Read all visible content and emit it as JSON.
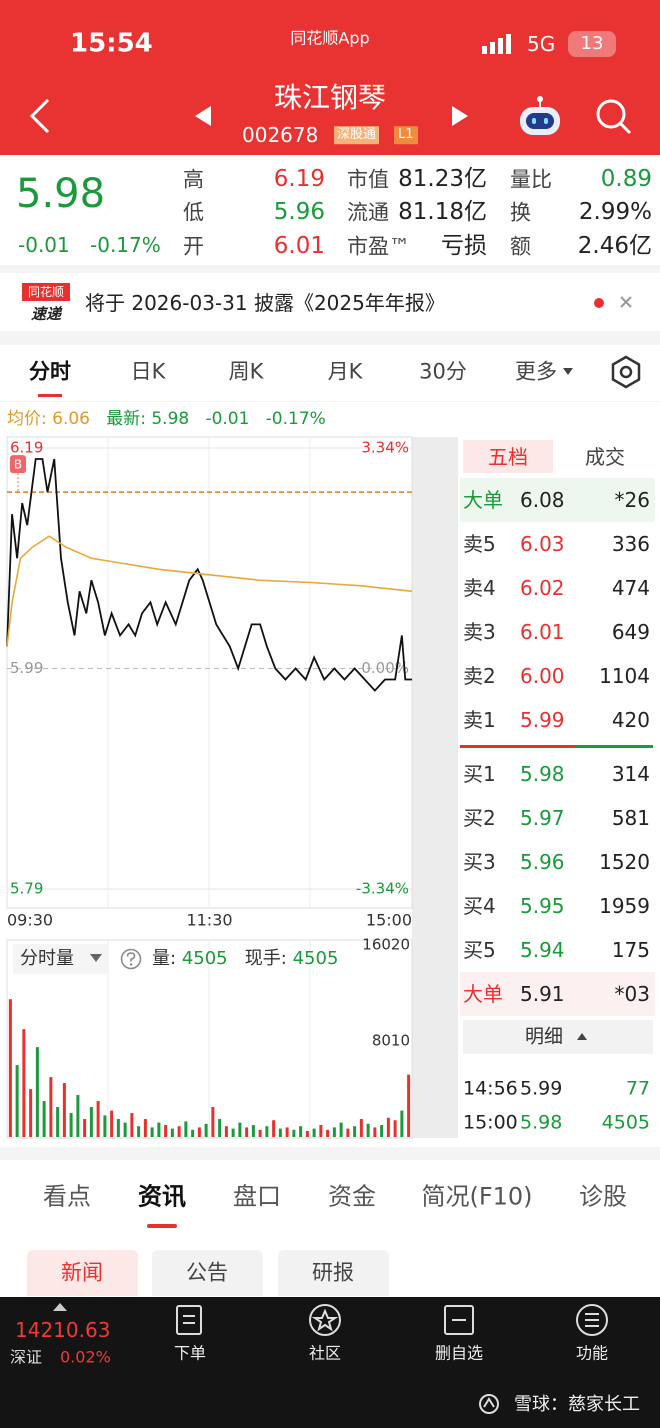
{
  "status_bar": {
    "time": "15:54",
    "app": "同花顺App",
    "network": "5G",
    "battery": "13"
  },
  "header": {
    "name": "珠江钢琴",
    "code": "002678",
    "tags": [
      "深股通",
      "L1"
    ]
  },
  "quote": {
    "price": "5.98",
    "change": "-0.01",
    "change_pct": "-0.17%",
    "stats": [
      [
        {
          "label": "高",
          "value": "6.19",
          "color": "#e8302f"
        },
        {
          "label": "市值",
          "value": "81.23亿",
          "color": "#222222"
        },
        {
          "label": "量比",
          "value": "0.89",
          "color": "#1a9a3a"
        }
      ],
      [
        {
          "label": "低",
          "value": "5.96",
          "color": "#1a9a3a"
        },
        {
          "label": "流通",
          "value": "81.18亿",
          "color": "#222222"
        },
        {
          "label": "换",
          "value": "2.99%",
          "color": "#222222"
        }
      ],
      [
        {
          "label": "开",
          "value": "6.01",
          "color": "#e8302f"
        },
        {
          "label": "市盈™",
          "value": "亏损",
          "color": "#222222"
        },
        {
          "label": "额",
          "value": "2.46亿",
          "color": "#222222"
        }
      ]
    ]
  },
  "notice": {
    "logo": [
      "同花顺",
      "速递"
    ],
    "text": "将于 2026-03-31 披露《2025年年报》"
  },
  "chart_tabs": [
    "分时",
    "日K",
    "周K",
    "月K",
    "30分",
    "更多"
  ],
  "info_line": {
    "avg_label": "均价:",
    "avg": "6.06",
    "last_label": "最新:",
    "last": "5.98",
    "change": "-0.01",
    "change_pct": "-0.17%"
  },
  "chart_data": [
    {
      "type": "line",
      "xlim": [
        0,
        240
      ],
      "xticks": [
        {
          "value": 0,
          "label": "09:30"
        },
        {
          "value": 120,
          "label": "11:30"
        },
        {
          "value": 240,
          "label": "15:00"
        }
      ],
      "ylim": [
        5.79,
        6.19
      ],
      "yticks": [
        5.79,
        5.99,
        6.19
      ],
      "y2lim": [
        -3.34,
        3.34
      ],
      "y2ticks": [
        {
          "value": -3.34,
          "label": "-3.34%"
        },
        {
          "value": 0,
          "label": "0.00%"
        },
        {
          "value": 3.34,
          "label": "3.34%"
        }
      ],
      "reference": {
        "label": "B",
        "value": 6.15,
        "color": "#e07b20"
      },
      "series": [
        {
          "color": "#111111",
          "x": [
            0,
            3,
            6,
            9,
            12,
            17,
            21,
            24,
            28,
            32,
            36,
            40,
            43,
            47,
            50,
            54,
            58,
            62,
            67,
            72,
            76,
            80,
            85,
            89,
            94,
            100,
            104,
            108,
            113,
            116,
            120,
            124,
            128,
            132,
            137,
            141,
            145,
            150,
            154,
            159,
            165,
            171,
            177,
            182,
            188,
            194,
            200,
            206,
            212,
            218,
            224,
            230,
            234,
            236,
            240
          ],
          "values": [
            6.01,
            6.13,
            6.09,
            6.14,
            6.12,
            6.18,
            6.18,
            6.15,
            6.18,
            6.09,
            6.05,
            6.02,
            6.06,
            6.04,
            6.07,
            6.05,
            6.02,
            6.04,
            6.02,
            6.03,
            6.02,
            6.04,
            6.05,
            6.03,
            6.05,
            6.03,
            6.05,
            6.07,
            6.08,
            6.07,
            6.05,
            6.03,
            6.02,
            6.01,
            5.99,
            6.01,
            6.03,
            6.03,
            6.01,
            5.99,
            5.98,
            5.99,
            5.98,
            6.0,
            5.98,
            5.99,
            5.98,
            5.99,
            5.98,
            5.97,
            5.98,
            5.98,
            6.02,
            5.98,
            5.98
          ]
        },
        {
          "color": "#e8a83a",
          "x": [
            0,
            3,
            8,
            15,
            25,
            35,
            50,
            70,
            90,
            120,
            150,
            180,
            210,
            240
          ],
          "values": [
            6.01,
            6.05,
            6.09,
            6.1,
            6.11,
            6.1,
            6.09,
            6.085,
            6.08,
            6.075,
            6.07,
            6.068,
            6.065,
            6.06
          ]
        }
      ]
    },
    {
      "type": "bar",
      "xlim": [
        0,
        240
      ],
      "ylim": [
        0,
        16020
      ],
      "yticks": [
        8010,
        16020
      ],
      "x": [
        2,
        6,
        10,
        14,
        18,
        22,
        26,
        30,
        34,
        38,
        42,
        46,
        50,
        54,
        58,
        62,
        66,
        70,
        74,
        78,
        82,
        86,
        90,
        94,
        98,
        102,
        106,
        110,
        114,
        118,
        122,
        126,
        130,
        134,
        138,
        142,
        146,
        150,
        154,
        158,
        162,
        166,
        170,
        174,
        178,
        182,
        186,
        190,
        194,
        198,
        202,
        206,
        210,
        214,
        218,
        222,
        226,
        230,
        234,
        238
      ],
      "values": [
        11500,
        6000,
        9000,
        4000,
        7500,
        3000,
        5000,
        2500,
        4500,
        2000,
        3500,
        1500,
        2500,
        3000,
        1800,
        2200,
        1500,
        1200,
        2000,
        900,
        1500,
        800,
        1200,
        1000,
        700,
        900,
        1300,
        600,
        800,
        1100,
        2500,
        1500,
        900,
        700,
        1200,
        800,
        1000,
        600,
        900,
        1400,
        700,
        800,
        600,
        900,
        500,
        700,
        1000,
        600,
        800,
        1200,
        700,
        900,
        1500,
        1100,
        800,
        1000,
        1600,
        1400,
        2200,
        5200
      ],
      "colors": [
        "#e8302f",
        "#1a9a3a",
        "#e8302f",
        "#e8302f",
        "#1a9a3a",
        "#1a9a3a",
        "#e8302f",
        "#1a9a3a",
        "#e8302f",
        "#1a9a3a",
        "#1a9a3a",
        "#e8302f",
        "#1a9a3a",
        "#e8302f",
        "#1a9a3a",
        "#e8302f",
        "#1a9a3a",
        "#1a9a3a",
        "#e8302f",
        "#1a9a3a",
        "#e8302f",
        "#1a9a3a",
        "#1a9a3a",
        "#e8302f",
        "#1a9a3a",
        "#e8302f",
        "#1a9a3a",
        "#1a9a3a",
        "#e8302f",
        "#1a9a3a",
        "#e8302f",
        "#1a9a3a",
        "#e8302f",
        "#1a9a3a",
        "#1a9a3a",
        "#e8302f",
        "#1a9a3a",
        "#e8302f",
        "#1a9a3a",
        "#e8302f",
        "#1a9a3a",
        "#e8302f",
        "#1a9a3a",
        "#1a9a3a",
        "#e8302f",
        "#1a9a3a",
        "#e8302f",
        "#e8302f",
        "#1a9a3a",
        "#1a9a3a",
        "#e8302f",
        "#1a9a3a",
        "#e8302f",
        "#1a9a3a",
        "#e8302f",
        "#1a9a3a",
        "#e8302f",
        "#e8302f",
        "#1a9a3a",
        "#e8302f"
      ]
    }
  ],
  "volume_info": {
    "selector": "分时量",
    "volume_label": "量:",
    "volume": "4505",
    "hand_label": "现手:",
    "hand": "4505"
  },
  "order_book": {
    "tabs": [
      "五档",
      "成交"
    ],
    "big_sell": {
      "label": "大单",
      "price": "6.08",
      "volume": "*26"
    },
    "asks": [
      {
        "label": "卖5",
        "price": "6.03",
        "volume": "336"
      },
      {
        "label": "卖4",
        "price": "6.02",
        "volume": "474"
      },
      {
        "label": "卖3",
        "price": "6.01",
        "volume": "649"
      },
      {
        "label": "卖2",
        "price": "6.00",
        "volume": "1104"
      },
      {
        "label": "卖1",
        "price": "5.99",
        "volume": "420"
      }
    ],
    "bids": [
      {
        "label": "买1",
        "price": "5.98",
        "volume": "314"
      },
      {
        "label": "买2",
        "price": "5.97",
        "volume": "581"
      },
      {
        "label": "买3",
        "price": "5.96",
        "volume": "1520"
      },
      {
        "label": "买4",
        "price": "5.95",
        "volume": "1959"
      },
      {
        "label": "买5",
        "price": "5.94",
        "volume": "175"
      }
    ],
    "big_buy": {
      "label": "大单",
      "price": "5.91",
      "volume": "*03"
    },
    "detail_label": "明细",
    "trades": [
      {
        "time": "14:56",
        "price": "5.99",
        "volume": "77",
        "price_color": "#222222",
        "volume_color": "#1a9a3a"
      },
      {
        "time": "15:00",
        "price": "5.98",
        "volume": "4505",
        "price_color": "#1a9a3a",
        "volume_color": "#1a9a3a"
      }
    ]
  },
  "info_tabs": [
    "看点",
    "资讯",
    "盘口",
    "资金",
    "简况(F10)",
    "诊股"
  ],
  "sub_tabs": [
    "新闻",
    "公告",
    "研报"
  ],
  "bottom_bar": {
    "index_value": "14210.63",
    "index_name": "深证",
    "index_change": "0.02%",
    "items": [
      "下单",
      "社区",
      "删自选",
      "功能"
    ]
  },
  "watermark": "雪球：慈家长工"
}
